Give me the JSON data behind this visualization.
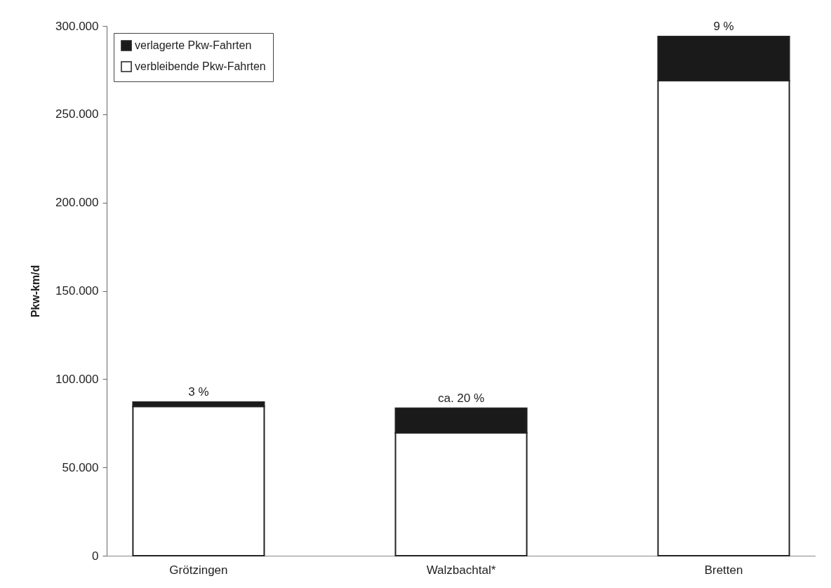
{
  "chart_data": {
    "type": "bar",
    "ylabel": "Pkw-km/d",
    "categories": [
      "Grötzingen",
      "Walzbachtal*",
      "Bretten"
    ],
    "stacked": true,
    "series": [
      {
        "name": "verbleibende Pkw-Fahrten",
        "color": "#ffffff",
        "values": [
          84500,
          69500,
          269000
        ]
      },
      {
        "name": "verlagerte Pkw-Fahrten",
        "color": "#1a1a1a",
        "values": [
          2500,
          14000,
          25000
        ]
      }
    ],
    "ylim": [
      0,
      300000
    ],
    "yticks": [
      {
        "value": 0,
        "label": "0"
      },
      {
        "value": 50000,
        "label": "50.000"
      },
      {
        "value": 100000,
        "label": "100.000"
      },
      {
        "value": 150000,
        "label": "150.000"
      },
      {
        "value": 200000,
        "label": "200.000"
      },
      {
        "value": 250000,
        "label": "250.000"
      },
      {
        "value": 300000,
        "label": "300.000"
      }
    ],
    "annotations": [
      {
        "text": "3 %",
        "x": "Grötzingen",
        "y": 87000
      },
      {
        "text": "ca. 20 %",
        "x": "Walzbachtal*",
        "y": 83500
      },
      {
        "text": "9 %",
        "x": "Bretten",
        "y": 294000
      }
    ],
    "legend": "top left",
    "grid": false
  }
}
